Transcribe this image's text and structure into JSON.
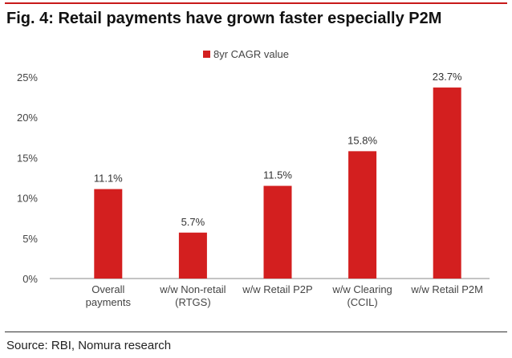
{
  "title": "Fig. 4: Retail payments have grown faster especially P2M",
  "source": "Source: RBI, Nomura research",
  "chart_data": {
    "type": "bar",
    "title": "Fig. 4: Retail payments have grown faster especially P2M",
    "categories": [
      [
        "Overall",
        "payments"
      ],
      [
        "w/w Non-retail",
        "(RTGS)"
      ],
      [
        "w/w Retail P2P"
      ],
      [
        "w/w Clearing",
        "(CCIL)"
      ],
      [
        "w/w Retail P2M"
      ]
    ],
    "series": [
      {
        "name": "8yr CAGR value",
        "values": [
          11.1,
          5.7,
          11.5,
          15.8,
          23.7
        ]
      }
    ],
    "data_labels": [
      "11.1%",
      "5.7%",
      "11.5%",
      "15.8%",
      "23.7%"
    ],
    "y_ticks": [
      "0%",
      "5%",
      "10%",
      "15%",
      "20%",
      "25%"
    ],
    "ylim": [
      0,
      25
    ],
    "xlabel": "",
    "ylabel": "",
    "grid": false,
    "legend_position": "top-center",
    "bar_color": "#d31f1f"
  }
}
